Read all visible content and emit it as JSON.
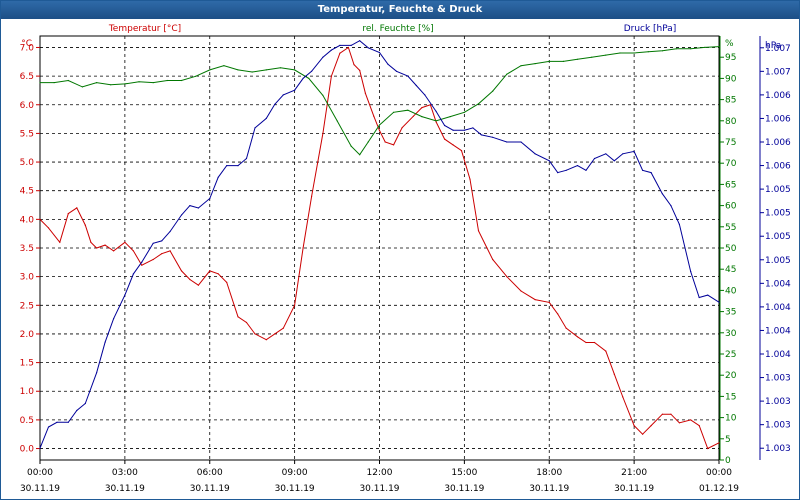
{
  "window": {
    "title": "Temperatur, Feuchte & Druck"
  },
  "colors": {
    "temperature": "#cc0000",
    "humidity": "#007700",
    "pressure": "#000099",
    "title_bar": "#1d4f86"
  },
  "chart_data": {
    "type": "line",
    "title": "Temperatur, Feuchte & Druck",
    "grid": true,
    "x_ticks": [
      {
        "time": "00:00",
        "date": "30.11.19"
      },
      {
        "time": "03:00",
        "date": "30.11.19"
      },
      {
        "time": "06:00",
        "date": "30.11.19"
      },
      {
        "time": "09:00",
        "date": "30.11.19"
      },
      {
        "time": "12:00",
        "date": "30.11.19"
      },
      {
        "time": "15:00",
        "date": "30.11.19"
      },
      {
        "time": "18:00",
        "date": "30.11.19"
      },
      {
        "time": "21:00",
        "date": "30.11.19"
      },
      {
        "time": "00:00",
        "date": "01.12.19"
      }
    ],
    "x_range_hours": [
      0,
      24
    ],
    "axes": {
      "temperature": {
        "unit_label": "°C",
        "range": [
          -0.2,
          7.2
        ],
        "ticks": [
          "0.0",
          "0.5",
          "1.0",
          "1.5",
          "2.0",
          "2.5",
          "3.0",
          "3.5",
          "4.0",
          "4.5",
          "5.0",
          "5.5",
          "6.0",
          "6.5",
          "7.0"
        ]
      },
      "humidity": {
        "unit_label": "%",
        "range": [
          0,
          100
        ],
        "ticks": [
          "0",
          "5",
          "10",
          "15",
          "20",
          "25",
          "30",
          "35",
          "40",
          "45",
          "50",
          "55",
          "60",
          "65",
          "70",
          "75",
          "80",
          "85",
          "90",
          "95"
        ]
      },
      "pressure": {
        "unit_label": "hPa",
        "range": [
          -0.5,
          17.5
        ],
        "ticks": [
          "1.003",
          "1.003",
          "1.003",
          "1.003",
          "1.004",
          "1.004",
          "1.004",
          "1.004",
          "1.005",
          "1.005",
          "1.005",
          "1.005",
          "1.006",
          "1.006",
          "1.006",
          "1.006",
          "1.007",
          "1.007"
        ]
      }
    },
    "series": [
      {
        "name": "Temperatur [°C]",
        "axis": "temperature",
        "x": [
          0,
          0.3,
          0.7,
          1.0,
          1.3,
          1.6,
          1.8,
          2.0,
          2.3,
          2.6,
          3.0,
          3.3,
          3.6,
          4.0,
          4.3,
          4.6,
          5.0,
          5.3,
          5.6,
          6.0,
          6.3,
          6.6,
          7.0,
          7.3,
          7.6,
          8.0,
          8.3,
          8.6,
          9.0,
          9.3,
          9.6,
          10.0,
          10.3,
          10.6,
          10.9,
          11.1,
          11.3,
          11.5,
          11.8,
          12.0,
          12.2,
          12.5,
          12.8,
          13.2,
          13.5,
          13.8,
          14.0,
          14.3,
          14.6,
          14.9,
          15.2,
          15.5,
          15.8,
          16.0,
          16.5,
          17.0,
          17.5,
          18.0,
          18.3,
          18.6,
          19.0,
          19.3,
          19.6,
          20.0,
          20.3,
          20.6,
          21.0,
          21.3,
          21.6,
          22.0,
          22.3,
          22.6,
          23.0,
          23.3,
          23.6,
          24.0
        ],
        "values": [
          4.0,
          3.85,
          3.6,
          4.1,
          4.2,
          3.9,
          3.6,
          3.5,
          3.55,
          3.45,
          3.6,
          3.45,
          3.2,
          3.3,
          3.4,
          3.45,
          3.1,
          2.95,
          2.85,
          3.1,
          3.05,
          2.9,
          2.3,
          2.2,
          2.0,
          1.9,
          2.0,
          2.1,
          2.5,
          3.5,
          4.4,
          5.5,
          6.5,
          6.9,
          7.0,
          6.7,
          6.6,
          6.2,
          5.8,
          5.55,
          5.35,
          5.3,
          5.6,
          5.8,
          5.95,
          6.0,
          5.7,
          5.4,
          5.3,
          5.2,
          4.7,
          3.8,
          3.5,
          3.3,
          3.0,
          2.75,
          2.6,
          2.55,
          2.35,
          2.1,
          1.95,
          1.85,
          1.85,
          1.7,
          1.3,
          0.9,
          0.4,
          0.25,
          0.4,
          0.6,
          0.6,
          0.45,
          0.5,
          0.4,
          0.0,
          0.1
        ]
      },
      {
        "name": "rel. Feuchte [%]",
        "axis": "humidity",
        "x": [
          0,
          0.5,
          1.0,
          1.5,
          2.0,
          2.5,
          3.0,
          3.5,
          4.0,
          4.5,
          5.0,
          5.5,
          6.0,
          6.5,
          7.0,
          7.5,
          8.0,
          8.5,
          9.0,
          9.5,
          10.0,
          10.5,
          11.0,
          11.3,
          11.6,
          12.0,
          12.5,
          13.0,
          13.5,
          14.0,
          14.5,
          15.0,
          15.5,
          16.0,
          16.5,
          17.0,
          17.5,
          18.0,
          18.5,
          19.0,
          19.5,
          20.0,
          20.5,
          21.0,
          21.5,
          22.0,
          22.5,
          23.0,
          23.5,
          24.0
        ],
        "values": [
          89,
          89,
          89.5,
          88,
          89,
          88.5,
          88.7,
          89.2,
          89,
          89.5,
          89.5,
          90.5,
          92,
          93,
          92,
          91.5,
          92,
          92.5,
          92,
          90,
          86,
          80,
          74,
          72,
          75,
          79,
          82,
          82.5,
          81,
          80,
          81,
          82,
          84,
          87,
          91,
          93,
          93.5,
          94,
          94,
          94.5,
          95,
          95.5,
          96,
          96,
          96.3,
          96.5,
          97,
          97,
          97.3,
          97.5
        ]
      },
      {
        "name": "Druck [hPa]",
        "axis": "pressure",
        "x": [
          0,
          0.3,
          0.6,
          1.0,
          1.3,
          1.6,
          2.0,
          2.3,
          2.6,
          3.0,
          3.3,
          3.6,
          4.0,
          4.3,
          4.6,
          5.0,
          5.3,
          5.6,
          6.0,
          6.3,
          6.6,
          7.0,
          7.3,
          7.6,
          8.0,
          8.3,
          8.6,
          9.0,
          9.3,
          9.6,
          10.0,
          10.3,
          10.6,
          11.0,
          11.3,
          11.6,
          12.0,
          12.3,
          12.6,
          13.0,
          13.3,
          13.6,
          14.0,
          14.3,
          14.6,
          15.0,
          15.3,
          15.6,
          16.0,
          16.5,
          17.0,
          17.5,
          18.0,
          18.3,
          18.6,
          19.0,
          19.3,
          19.6,
          20.0,
          20.3,
          20.6,
          21.0,
          21.3,
          21.6,
          22.0,
          22.3,
          22.6,
          23.0,
          23.3,
          23.6,
          24.0
        ],
        "values": [
          0,
          0.9,
          1.1,
          1.1,
          1.6,
          1.9,
          3.2,
          4.5,
          5.5,
          6.5,
          7.4,
          7.9,
          8.7,
          8.8,
          9.2,
          9.9,
          10.3,
          10.2,
          10.6,
          11.5,
          12.0,
          12.0,
          12.3,
          13.6,
          14.0,
          14.6,
          15.0,
          15.2,
          15.7,
          16.0,
          16.6,
          16.9,
          17.1,
          17.1,
          17.3,
          17.0,
          16.8,
          16.3,
          16.0,
          15.8,
          15.4,
          15.0,
          14.3,
          13.7,
          13.5,
          13.5,
          13.6,
          13.3,
          13.2,
          13.0,
          13.0,
          12.5,
          12.2,
          11.7,
          11.8,
          12.0,
          11.8,
          12.3,
          12.5,
          12.2,
          12.5,
          12.6,
          11.8,
          11.7,
          10.8,
          10.3,
          9.5,
          7.5,
          6.4,
          6.5,
          6.2
        ]
      }
    ]
  }
}
